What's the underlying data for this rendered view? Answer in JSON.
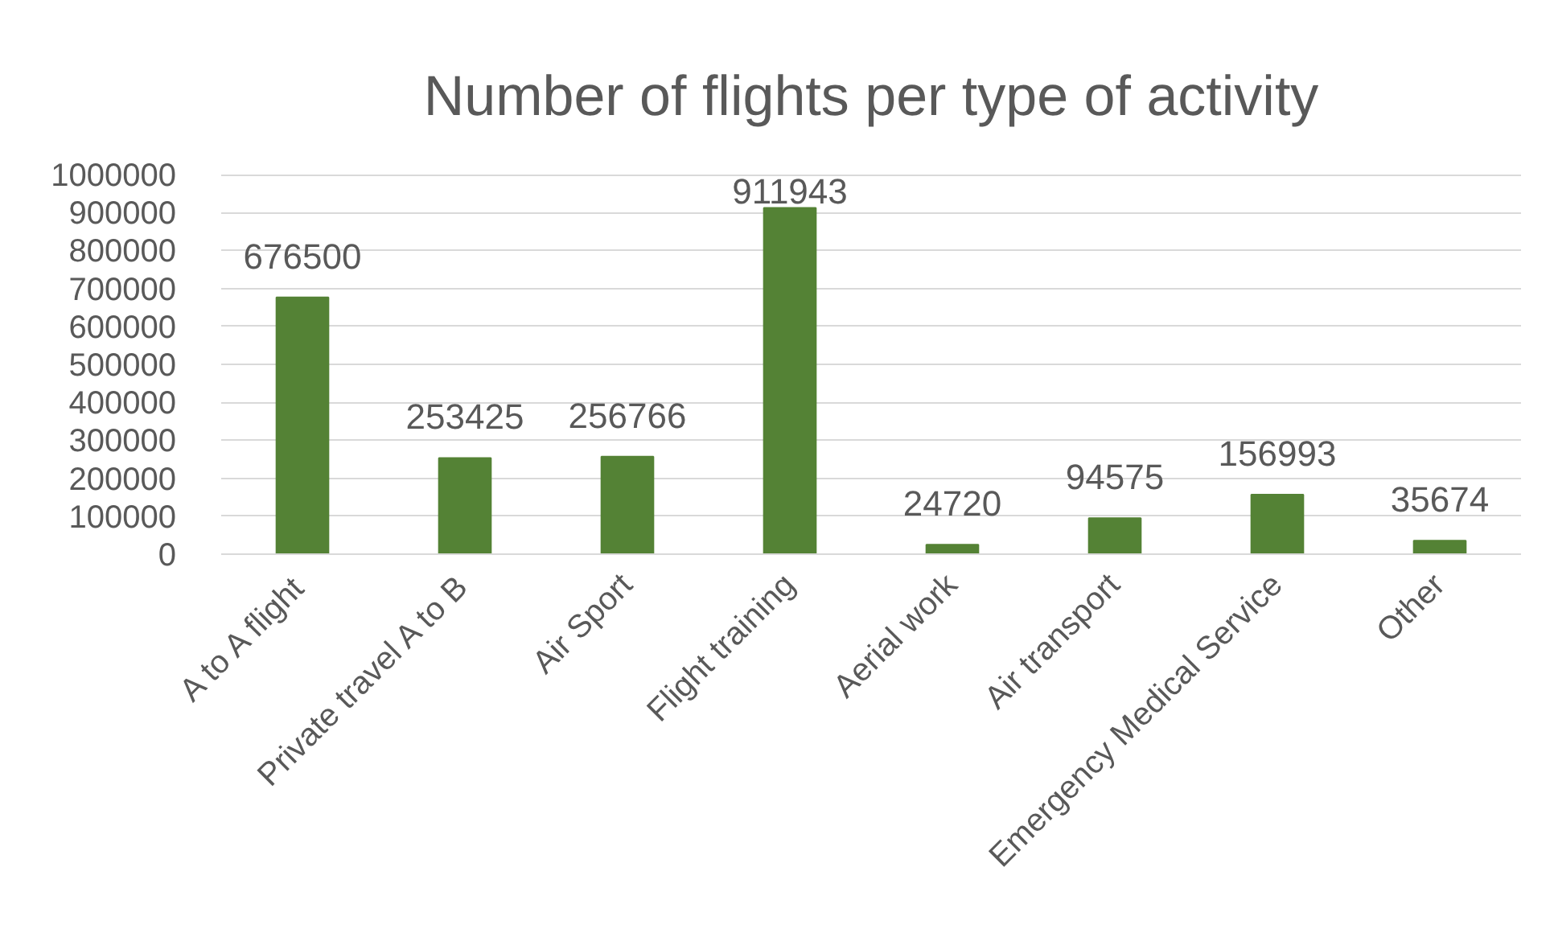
{
  "chart_data": {
    "type": "bar",
    "title": "Number of flights per type of activity",
    "categories": [
      "A to A flight",
      "Private travel A to B",
      "Air Sport",
      "Flight training",
      "Aerial work",
      "Air transport",
      "Emergency Medical Service",
      "Other"
    ],
    "values": [
      676500,
      253425,
      256766,
      911943,
      24720,
      94575,
      156993,
      35674
    ],
    "color": "#548235",
    "ylim": [
      0,
      1000000
    ],
    "yticks": [
      0,
      100000,
      200000,
      300000,
      400000,
      500000,
      600000,
      700000,
      800000,
      900000,
      1000000
    ],
    "grid": "y",
    "data_labels": true
  }
}
